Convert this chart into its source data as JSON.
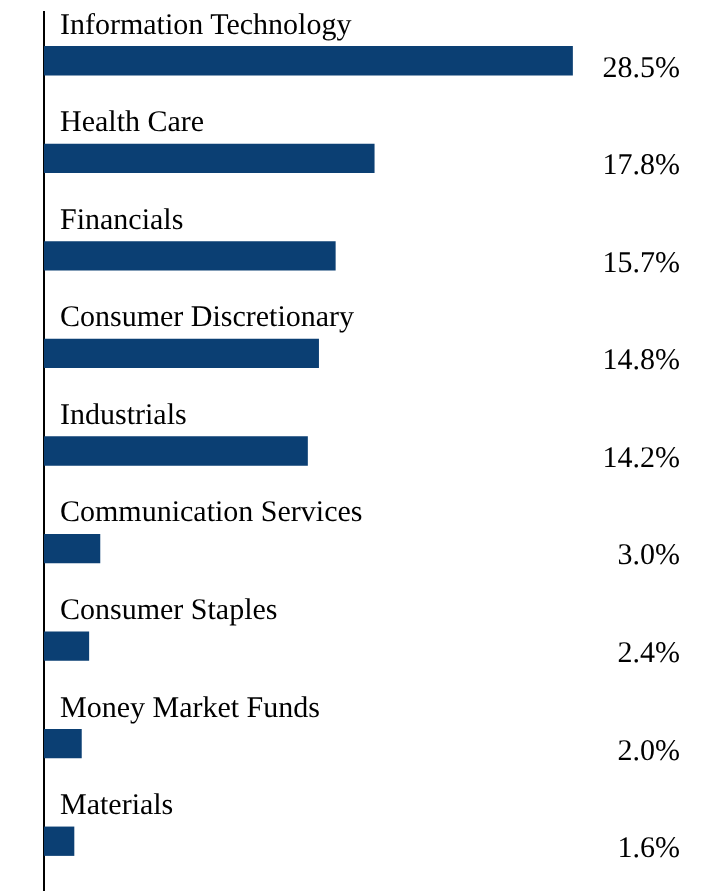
{
  "chart_data": {
    "type": "bar",
    "orientation": "horizontal",
    "categories": [
      "Information Technology",
      "Health Care",
      "Financials",
      "Consumer Discretionary",
      "Industrials",
      "Communication Services",
      "Consumer Staples",
      "Money Market Funds",
      "Materials"
    ],
    "values": [
      28.5,
      17.8,
      15.7,
      14.8,
      14.2,
      3.0,
      2.4,
      2.0,
      1.6
    ],
    "value_labels": [
      "28.5%",
      "17.8%",
      "15.7%",
      "14.8%",
      "14.2%",
      "3.0%",
      "2.4%",
      "2.0%",
      "1.6%"
    ],
    "color": "#0b3f73",
    "legend": false,
    "tick_labels": false
  }
}
